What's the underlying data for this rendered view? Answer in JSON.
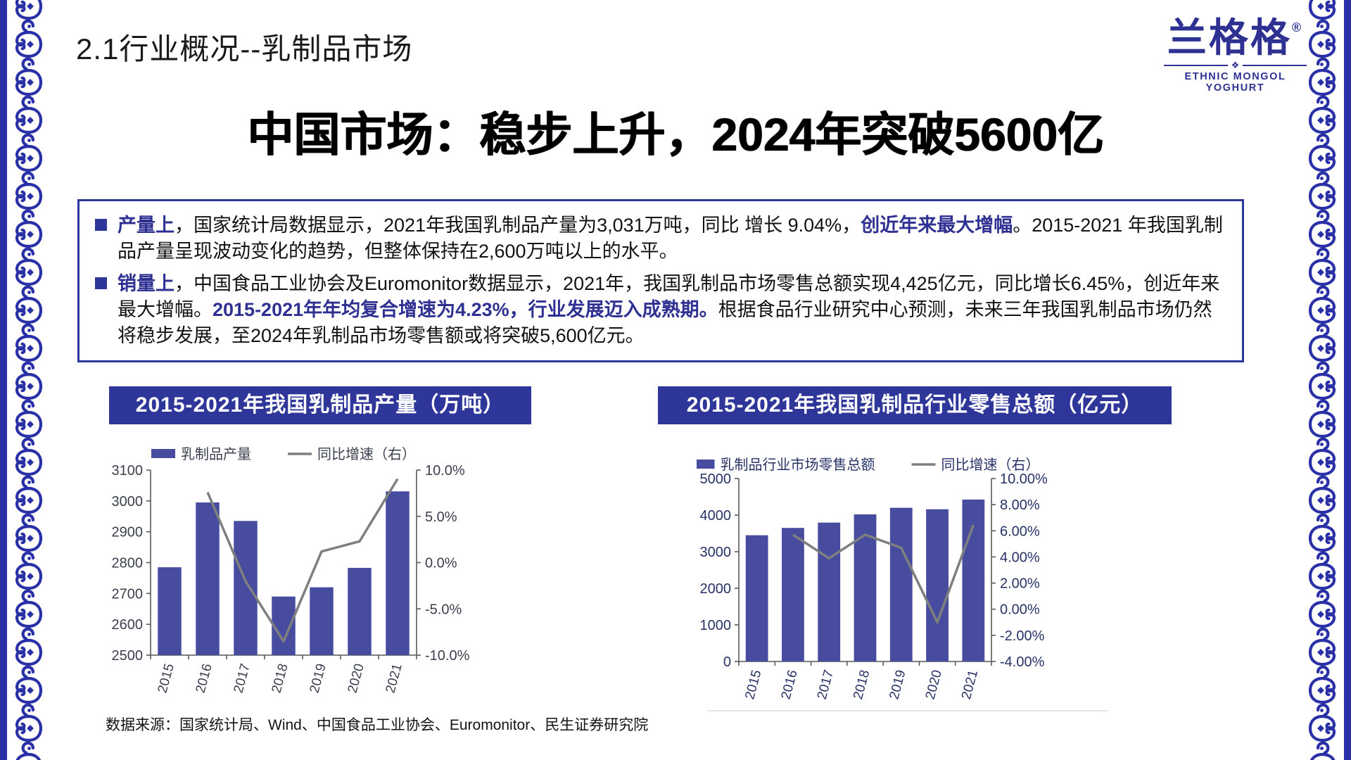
{
  "page": {
    "section_title": "2.1行业概况--乳制品市场",
    "headline": "中国市场：稳步上升，2024年突破5600亿",
    "source": "数据来源：国家统计局、Wind、中国食品工业协会、Euromonitor、民生证券研究院"
  },
  "logo": {
    "name": "兰格格",
    "registered": "®",
    "subtitle": "ETHNIC MONGOL YOGHURT",
    "knot": "❖"
  },
  "bullets": [
    {
      "segments": [
        {
          "text": "产量上",
          "style": "blue"
        },
        {
          "text": "，国家统计局数据显示，2021年我国乳制品产量为3,031万吨，同比 增长 9.04%，",
          "style": "normal"
        },
        {
          "text": "创近年来最大增幅",
          "style": "blue"
        },
        {
          "text": "。2015-2021 年我国乳制品产量呈现波动变化的趋势，但整体保持在2,600万吨以上的水平。",
          "style": "normal"
        }
      ]
    },
    {
      "segments": [
        {
          "text": "销量上",
          "style": "blue"
        },
        {
          "text": "，中国食品工业协会及Euromonitor数据显示，2021年，我国乳制品市场零售总额实现4,425亿元，同比增长6.45%，创近年来最大增幅。",
          "style": "normal"
        },
        {
          "text": "2015-2021年年均复合增速为4.23%，行业发展迈入成熟期。",
          "style": "blue"
        },
        {
          "text": "根据食品行业研究中心预测，未来三年我国乳制品市场仍然将稳步发展，至2024年乳制品市场零售额或将突破5,600亿元。",
          "style": "normal"
        }
      ]
    }
  ],
  "colors": {
    "accent_blue": "#2F3699",
    "logo_blue": "#2E3192",
    "pattern_blue": "#2A30A6",
    "bar_fill": "#474C9F",
    "line_gray": "#7F7F7F",
    "axis_gray": "#595959",
    "left_chart_text": "#3A3F4D",
    "right_chart_text": "#273266"
  },
  "chart_data": [
    {
      "type": "bar",
      "subtype": "combo-bar-line",
      "title": "2015-2021年我国乳制品产量（万吨）",
      "categories": [
        "2015",
        "2016",
        "2017",
        "2018",
        "2019",
        "2020",
        "2021"
      ],
      "series": [
        {
          "name": "乳制品产量",
          "type": "bar",
          "axis": "left",
          "values": [
            2785,
            2995,
            2935,
            2690,
            2720,
            2783,
            3031
          ]
        },
        {
          "name": "同比增速（右）",
          "type": "line",
          "axis": "right",
          "values": [
            null,
            7.6,
            -2.0,
            -8.5,
            1.2,
            2.3,
            9.04
          ]
        }
      ],
      "left_axis": {
        "min": 2500,
        "max": 3100,
        "step": 100,
        "labels": [
          "2500",
          "2600",
          "2700",
          "2800",
          "2900",
          "3000",
          "3100"
        ]
      },
      "right_axis": {
        "min": -10,
        "max": 10,
        "step": 5,
        "labels": [
          "-10.0%",
          "-5.0%",
          "0.0%",
          "5.0%",
          "10.0%"
        ]
      },
      "legend_position": "top",
      "grid": false
    },
    {
      "type": "bar",
      "subtype": "combo-bar-line",
      "title": "2015-2021年我国乳制品行业零售总额（亿元）",
      "categories": [
        "2015",
        "2016",
        "2017",
        "2018",
        "2019",
        "2020",
        "2021"
      ],
      "series": [
        {
          "name": "乳制品行业市场零售总额",
          "type": "bar",
          "axis": "left",
          "values": [
            3450,
            3650,
            3795,
            4020,
            4200,
            4160,
            4425
          ]
        },
        {
          "name": "同比增速（右）",
          "type": "line",
          "axis": "right",
          "values": [
            null,
            5.7,
            3.9,
            5.7,
            4.7,
            -1.0,
            6.45
          ]
        }
      ],
      "left_axis": {
        "min": 0,
        "max": 5000,
        "step": 1000,
        "labels": [
          "0",
          "1000",
          "2000",
          "3000",
          "4000",
          "5000"
        ]
      },
      "right_axis": {
        "min": -4,
        "max": 10,
        "step": 2,
        "labels": [
          "-4.00%",
          "-2.00%",
          "0.00%",
          "2.00%",
          "4.00%",
          "6.00%",
          "8.00%",
          "10.00%"
        ]
      },
      "legend_position": "top",
      "grid": false
    }
  ]
}
